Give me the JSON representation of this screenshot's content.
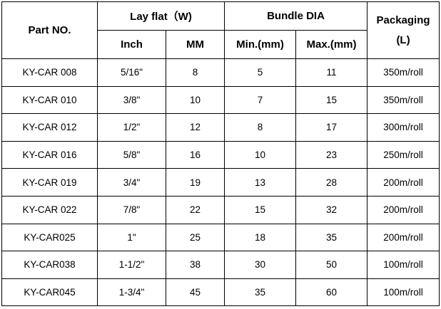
{
  "table": {
    "headers": {
      "part_no": "Part NO.",
      "lay_flat": "Lay flat（W)",
      "bundle_dia": "Bundle DIA",
      "packaging_line1": "Packaging",
      "packaging_line2": "(L)",
      "inch": "Inch",
      "mm": "MM",
      "min": "Min.(mm)",
      "max": "Max.(mm)"
    },
    "rows": [
      {
        "part": "KY-CAR 008",
        "inch": "5/16\"",
        "mm": "8",
        "min": "5",
        "max": "11",
        "pack": "350m/roll"
      },
      {
        "part": "KY-CAR 010",
        "inch": "3/8\"",
        "mm": "10",
        "min": "7",
        "max": "15",
        "pack": "350m/roll"
      },
      {
        "part": "KY-CAR 012",
        "inch": "1/2\"",
        "mm": "12",
        "min": "8",
        "max": "17",
        "pack": "300m/roll"
      },
      {
        "part": "KY-CAR 016",
        "inch": "5/8\"",
        "mm": "16",
        "min": "10",
        "max": "23",
        "pack": "250m/roll"
      },
      {
        "part": "KY-CAR 019",
        "inch": "3/4\"",
        "mm": "19",
        "min": "13",
        "max": "28",
        "pack": "200m/roll"
      },
      {
        "part": "KY-CAR 022",
        "inch": "7/8\"",
        "mm": "22",
        "min": "15",
        "max": "32",
        "pack": "200m/roll"
      },
      {
        "part": "KY-CAR025",
        "inch": "1\"",
        "mm": "25",
        "min": "18",
        "max": "35",
        "pack": "200m/roll"
      },
      {
        "part": "KY-CAR038",
        "inch": "1-1/2\"",
        "mm": "38",
        "min": "30",
        "max": "50",
        "pack": "100m/roll"
      },
      {
        "part": "KY-CAR045",
        "inch": "1-3/4\"",
        "mm": "45",
        "min": "35",
        "max": "60",
        "pack": "100m/roll"
      }
    ]
  }
}
